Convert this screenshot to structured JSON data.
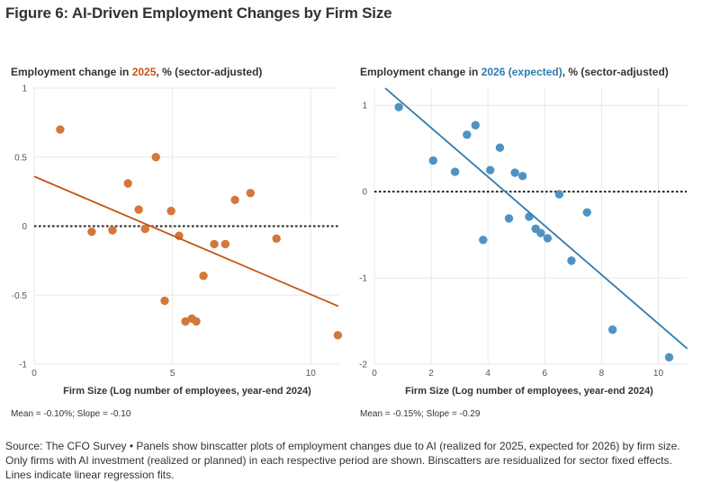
{
  "title": "Figure 6: AI-Driven Employment Changes by Firm Size",
  "colors": {
    "orange": "#d4773a",
    "orange_line": "#c65514",
    "blue": "#4f93c4",
    "blue_line": "#2e7bb0"
  },
  "source": "Source: The CFO Survey • Panels show binscatter plots of employment changes due to AI (realized for 2025, expected for 2026) by firm size. Only firms with AI investment (realized or planned) in each respective period are shown. Binscatters are residualized for sector fixed effects. Lines indicate linear regression fits.",
  "chart_data": [
    {
      "type": "scatter",
      "subtitle_prefix": "Employment change in ",
      "subtitle_highlight": "2025",
      "subtitle_suffix": ", % (sector-adjusted)",
      "xlabel": "Firm Size (Log number of employees, year-end 2024)",
      "stats": "Mean = -0.10%; Slope = -0.10",
      "xlim": [
        0,
        11
      ],
      "ylim": [
        -1,
        1
      ],
      "xticks": [
        0,
        5,
        10
      ],
      "yticks": [
        -1,
        -0.5,
        0,
        0.5,
        1
      ],
      "xtick_labels": [
        "0",
        "5",
        "10"
      ],
      "ytick_labels": [
        "-1",
        "-0.5",
        "0",
        "0.5",
        "1"
      ],
      "grid": true,
      "reference_line_y": 0,
      "points": [
        [
          0.94,
          0.7
        ],
        [
          2.08,
          -0.04
        ],
        [
          2.83,
          -0.03
        ],
        [
          3.39,
          0.31
        ],
        [
          3.78,
          0.12
        ],
        [
          4.01,
          -0.02
        ],
        [
          4.4,
          0.5
        ],
        [
          4.72,
          -0.54
        ],
        [
          4.95,
          0.11
        ],
        [
          5.24,
          -0.07
        ],
        [
          5.47,
          -0.69
        ],
        [
          5.7,
          -0.67
        ],
        [
          5.86,
          -0.69
        ],
        [
          6.12,
          -0.36
        ],
        [
          6.51,
          -0.13
        ],
        [
          6.91,
          -0.13
        ],
        [
          7.26,
          0.19
        ],
        [
          7.82,
          0.24
        ],
        [
          8.76,
          -0.09
        ],
        [
          10.98,
          -0.79
        ]
      ],
      "fit_line": [
        [
          0,
          0.36
        ],
        [
          11,
          -0.58
        ]
      ]
    },
    {
      "type": "scatter",
      "subtitle_prefix": "Employment change in ",
      "subtitle_highlight": "2026 (expected)",
      "subtitle_suffix": ", % (sector-adjusted)",
      "xlabel": "Firm Size (Log number of employees, year-end 2024)",
      "stats": "Mean = -0.15%; Slope = -0.29",
      "xlim": [
        0,
        11
      ],
      "ylim": [
        -2,
        1.2
      ],
      "xticks": [
        0,
        2,
        4,
        6,
        8,
        10
      ],
      "yticks": [
        -2,
        -1,
        0,
        1
      ],
      "xtick_labels": [
        "0",
        "2",
        "4",
        "6",
        "8",
        "10"
      ],
      "ytick_labels": [
        "-2",
        "-1",
        "0",
        "1"
      ],
      "grid": true,
      "reference_line_y": 0,
      "points": [
        [
          0.86,
          0.98
        ],
        [
          2.07,
          0.36
        ],
        [
          2.84,
          0.23
        ],
        [
          3.26,
          0.66
        ],
        [
          3.56,
          0.77
        ],
        [
          3.83,
          -0.56
        ],
        [
          4.08,
          0.25
        ],
        [
          4.42,
          0.51
        ],
        [
          4.74,
          -0.31
        ],
        [
          4.95,
          0.22
        ],
        [
          5.22,
          0.18
        ],
        [
          5.45,
          -0.29
        ],
        [
          5.68,
          -0.43
        ],
        [
          5.86,
          -0.48
        ],
        [
          6.1,
          -0.54
        ],
        [
          6.51,
          -0.03
        ],
        [
          6.94,
          -0.8
        ],
        [
          7.49,
          -0.24
        ],
        [
          8.39,
          -1.6
        ],
        [
          10.38,
          -1.92
        ]
      ],
      "fit_line": [
        [
          0.38,
          1.2
        ],
        [
          11.02,
          -1.82
        ]
      ]
    }
  ]
}
